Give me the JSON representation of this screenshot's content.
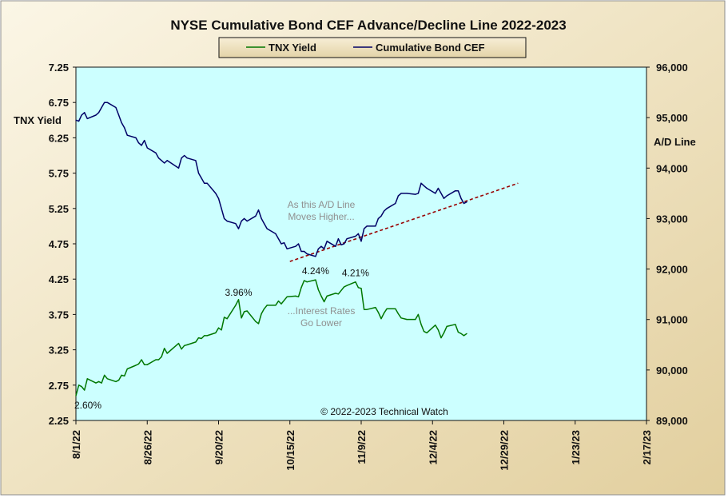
{
  "chart_data": {
    "type": "line",
    "title": "NYSE Cumulative  Bond CEF Advance/Decline  Line 2022-2023",
    "ylabel_left": "TNX  Yield",
    "ylabel_right": "A/D Line",
    "x_tick_labels": [
      "8/1/22",
      "8/26/22",
      "9/20/22",
      "10/15/22",
      "11/9/22",
      "12/4/22",
      "12/29/22",
      "1/23/23",
      "2/17/23"
    ],
    "x_range": [
      "2022-08-01",
      "2023-02-17"
    ],
    "y_left_ticks": [
      "2.25",
      "2.75",
      "3.25",
      "3.75",
      "4.25",
      "4.75",
      "5.25",
      "5.75",
      "6.25",
      "6.75",
      "7.25"
    ],
    "y_left_range": [
      2.25,
      7.25
    ],
    "y_right_ticks": [
      "89,000",
      "90,000",
      "91,000",
      "92,000",
      "93,000",
      "94,000",
      "95,000",
      "96,000"
    ],
    "y_right_range": [
      89000,
      96000
    ],
    "grid": false,
    "legend_position": "top-center",
    "plot_background": "#ccffff",
    "series": [
      {
        "name": "TNX Yield",
        "axis": "left",
        "color": "#007700",
        "points": [
          [
            "2022-08-01",
            2.6
          ],
          [
            "2022-08-02",
            2.75
          ],
          [
            "2022-08-03",
            2.73
          ],
          [
            "2022-08-04",
            2.68
          ],
          [
            "2022-08-05",
            2.84
          ],
          [
            "2022-08-08",
            2.78
          ],
          [
            "2022-08-09",
            2.8
          ],
          [
            "2022-08-10",
            2.78
          ],
          [
            "2022-08-11",
            2.89
          ],
          [
            "2022-08-12",
            2.84
          ],
          [
            "2022-08-15",
            2.8
          ],
          [
            "2022-08-16",
            2.82
          ],
          [
            "2022-08-17",
            2.89
          ],
          [
            "2022-08-18",
            2.88
          ],
          [
            "2022-08-19",
            2.98
          ],
          [
            "2022-08-22",
            3.03
          ],
          [
            "2022-08-23",
            3.05
          ],
          [
            "2022-08-24",
            3.11
          ],
          [
            "2022-08-25",
            3.04
          ],
          [
            "2022-08-26",
            3.04
          ],
          [
            "2022-08-29",
            3.11
          ],
          [
            "2022-08-30",
            3.11
          ],
          [
            "2022-08-31",
            3.15
          ],
          [
            "2022-09-01",
            3.27
          ],
          [
            "2022-09-02",
            3.2
          ],
          [
            "2022-09-06",
            3.34
          ],
          [
            "2022-09-07",
            3.26
          ],
          [
            "2022-09-08",
            3.31
          ],
          [
            "2022-09-09",
            3.32
          ],
          [
            "2022-09-12",
            3.36
          ],
          [
            "2022-09-13",
            3.42
          ],
          [
            "2022-09-14",
            3.41
          ],
          [
            "2022-09-15",
            3.45
          ],
          [
            "2022-09-16",
            3.45
          ],
          [
            "2022-09-19",
            3.49
          ],
          [
            "2022-09-20",
            3.56
          ],
          [
            "2022-09-21",
            3.53
          ],
          [
            "2022-09-22",
            3.71
          ],
          [
            "2022-09-23",
            3.69
          ],
          [
            "2022-09-26",
            3.88
          ],
          [
            "2022-09-27",
            3.96
          ],
          [
            "2022-09-28",
            3.7
          ],
          [
            "2022-09-29",
            3.79
          ],
          [
            "2022-09-30",
            3.8
          ],
          [
            "2022-10-03",
            3.65
          ],
          [
            "2022-10-04",
            3.62
          ],
          [
            "2022-10-05",
            3.76
          ],
          [
            "2022-10-06",
            3.83
          ],
          [
            "2022-10-07",
            3.88
          ],
          [
            "2022-10-10",
            3.88
          ],
          [
            "2022-10-11",
            3.94
          ],
          [
            "2022-10-12",
            3.9
          ],
          [
            "2022-10-13",
            3.95
          ],
          [
            "2022-10-14",
            4.0
          ],
          [
            "2022-10-17",
            4.01
          ],
          [
            "2022-10-18",
            4.0
          ],
          [
            "2022-10-19",
            4.13
          ],
          [
            "2022-10-20",
            4.23
          ],
          [
            "2022-10-21",
            4.21
          ],
          [
            "2022-10-24",
            4.24
          ],
          [
            "2022-10-25",
            4.1
          ],
          [
            "2022-10-26",
            4.01
          ],
          [
            "2022-10-27",
            3.93
          ],
          [
            "2022-10-28",
            4.01
          ],
          [
            "2022-10-31",
            4.05
          ],
          [
            "2022-11-01",
            4.04
          ],
          [
            "2022-11-02",
            4.09
          ],
          [
            "2022-11-03",
            4.14
          ],
          [
            "2022-11-04",
            4.16
          ],
          [
            "2022-11-07",
            4.21
          ],
          [
            "2022-11-08",
            4.13
          ],
          [
            "2022-11-09",
            4.12
          ],
          [
            "2022-11-10",
            3.82
          ],
          [
            "2022-11-11",
            3.82
          ],
          [
            "2022-11-14",
            3.85
          ],
          [
            "2022-11-15",
            3.78
          ],
          [
            "2022-11-16",
            3.69
          ],
          [
            "2022-11-17",
            3.77
          ],
          [
            "2022-11-18",
            3.83
          ],
          [
            "2022-11-21",
            3.83
          ],
          [
            "2022-11-22",
            3.76
          ],
          [
            "2022-11-23",
            3.7
          ],
          [
            "2022-11-25",
            3.68
          ],
          [
            "2022-11-28",
            3.68
          ],
          [
            "2022-11-29",
            3.75
          ],
          [
            "2022-11-30",
            3.61
          ],
          [
            "2022-12-01",
            3.51
          ],
          [
            "2022-12-02",
            3.49
          ],
          [
            "2022-12-05",
            3.6
          ],
          [
            "2022-12-06",
            3.53
          ],
          [
            "2022-12-07",
            3.42
          ],
          [
            "2022-12-08",
            3.49
          ],
          [
            "2022-12-09",
            3.58
          ],
          [
            "2022-12-12",
            3.61
          ],
          [
            "2022-12-13",
            3.5
          ],
          [
            "2022-12-14",
            3.48
          ],
          [
            "2022-12-15",
            3.45
          ],
          [
            "2022-12-16",
            3.48
          ]
        ]
      },
      {
        "name": "Cumulative Bond CEF",
        "axis": "right",
        "color": "#000066",
        "points": [
          [
            "2022-08-01",
            94950
          ],
          [
            "2022-08-02",
            94930
          ],
          [
            "2022-08-03",
            95050
          ],
          [
            "2022-08-04",
            95100
          ],
          [
            "2022-08-05",
            94980
          ],
          [
            "2022-08-08",
            95050
          ],
          [
            "2022-08-09",
            95100
          ],
          [
            "2022-08-10",
            95200
          ],
          [
            "2022-08-11",
            95300
          ],
          [
            "2022-08-12",
            95300
          ],
          [
            "2022-08-15",
            95200
          ],
          [
            "2022-08-16",
            95050
          ],
          [
            "2022-08-17",
            94900
          ],
          [
            "2022-08-18",
            94800
          ],
          [
            "2022-08-19",
            94650
          ],
          [
            "2022-08-22",
            94600
          ],
          [
            "2022-08-23",
            94500
          ],
          [
            "2022-08-24",
            94450
          ],
          [
            "2022-08-25",
            94550
          ],
          [
            "2022-08-26",
            94400
          ],
          [
            "2022-08-29",
            94300
          ],
          [
            "2022-08-30",
            94200
          ],
          [
            "2022-08-31",
            94150
          ],
          [
            "2022-09-01",
            94100
          ],
          [
            "2022-09-02",
            94150
          ],
          [
            "2022-09-06",
            94000
          ],
          [
            "2022-09-07",
            94200
          ],
          [
            "2022-09-08",
            94250
          ],
          [
            "2022-09-09",
            94200
          ],
          [
            "2022-09-12",
            94150
          ],
          [
            "2022-09-13",
            93900
          ],
          [
            "2022-09-14",
            93800
          ],
          [
            "2022-09-15",
            93700
          ],
          [
            "2022-09-16",
            93700
          ],
          [
            "2022-09-19",
            93500
          ],
          [
            "2022-09-20",
            93400
          ],
          [
            "2022-09-21",
            93200
          ],
          [
            "2022-09-22",
            93000
          ],
          [
            "2022-09-23",
            92950
          ],
          [
            "2022-09-26",
            92900
          ],
          [
            "2022-09-27",
            92800
          ],
          [
            "2022-09-28",
            92950
          ],
          [
            "2022-09-29",
            93000
          ],
          [
            "2022-09-30",
            92950
          ],
          [
            "2022-10-03",
            93050
          ],
          [
            "2022-10-04",
            93170
          ],
          [
            "2022-10-05",
            93000
          ],
          [
            "2022-10-06",
            92900
          ],
          [
            "2022-10-07",
            92800
          ],
          [
            "2022-10-10",
            92700
          ],
          [
            "2022-10-11",
            92600
          ],
          [
            "2022-10-12",
            92500
          ],
          [
            "2022-10-13",
            92520
          ],
          [
            "2022-10-14",
            92400
          ],
          [
            "2022-10-17",
            92450
          ],
          [
            "2022-10-18",
            92500
          ],
          [
            "2022-10-19",
            92350
          ],
          [
            "2022-10-20",
            92350
          ],
          [
            "2022-10-21",
            92300
          ],
          [
            "2022-10-24",
            92250
          ],
          [
            "2022-10-25",
            92400
          ],
          [
            "2022-10-26",
            92450
          ],
          [
            "2022-10-27",
            92400
          ],
          [
            "2022-10-28",
            92550
          ],
          [
            "2022-10-31",
            92450
          ],
          [
            "2022-11-01",
            92600
          ],
          [
            "2022-11-02",
            92480
          ],
          [
            "2022-11-03",
            92500
          ],
          [
            "2022-11-04",
            92600
          ],
          [
            "2022-11-07",
            92650
          ],
          [
            "2022-11-08",
            92700
          ],
          [
            "2022-11-09",
            92550
          ],
          [
            "2022-11-10",
            92800
          ],
          [
            "2022-11-11",
            92850
          ],
          [
            "2022-11-14",
            92850
          ],
          [
            "2022-11-15",
            93000
          ],
          [
            "2022-11-16",
            93050
          ],
          [
            "2022-11-17",
            93150
          ],
          [
            "2022-11-18",
            93200
          ],
          [
            "2022-11-21",
            93300
          ],
          [
            "2022-11-22",
            93450
          ],
          [
            "2022-11-23",
            93500
          ],
          [
            "2022-11-25",
            93500
          ],
          [
            "2022-11-28",
            93480
          ],
          [
            "2022-11-29",
            93500
          ],
          [
            "2022-11-30",
            93700
          ],
          [
            "2022-12-01",
            93650
          ],
          [
            "2022-12-02",
            93600
          ],
          [
            "2022-12-05",
            93500
          ],
          [
            "2022-12-06",
            93600
          ],
          [
            "2022-12-07",
            93500
          ],
          [
            "2022-12-08",
            93400
          ],
          [
            "2022-12-09",
            93450
          ],
          [
            "2022-12-12",
            93550
          ],
          [
            "2022-12-13",
            93550
          ],
          [
            "2022-12-14",
            93400
          ],
          [
            "2022-12-15",
            93300
          ],
          [
            "2022-12-16",
            93330
          ]
        ]
      }
    ],
    "trendline": {
      "axis": "right",
      "color": "#990000",
      "style": "dashed",
      "from": [
        "2022-10-15",
        92150
      ],
      "to": [
        "2023-01-03",
        93700
      ]
    },
    "point_labels": [
      {
        "text": "2.60%",
        "at": [
          "2022-08-01",
          2.6
        ]
      },
      {
        "text": "3.96%",
        "at": [
          "2022-09-27",
          3.96
        ]
      },
      {
        "text": "4.24%",
        "at": [
          "2022-10-24",
          4.24
        ]
      },
      {
        "text": "4.21%",
        "at": [
          "2022-11-07",
          4.21
        ]
      }
    ],
    "annotations": [
      {
        "lines": [
          "As this A/D Line",
          "Moves Higher..."
        ]
      },
      {
        "lines": [
          "...Interest Rates",
          "Go Lower"
        ]
      }
    ],
    "copyright": "© 2022-2023  Technical  Watch"
  }
}
